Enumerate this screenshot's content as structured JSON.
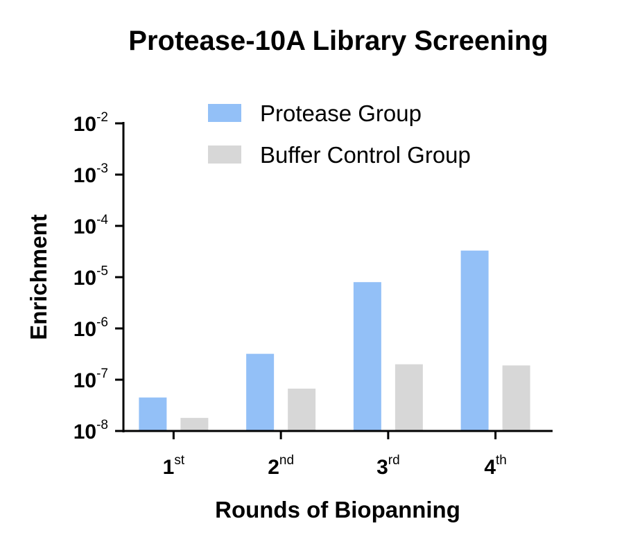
{
  "chart_data": {
    "type": "bar",
    "title": "Protease-10A Library Screening",
    "xlabel": "Rounds of Biopanning",
    "ylabel": "Enrichment",
    "y_scale": "log",
    "ylim": [
      1e-08,
      0.01
    ],
    "y_ticks": [
      {
        "base": "10",
        "exp": "-2",
        "value": 0.01
      },
      {
        "base": "10",
        "exp": "-3",
        "value": 0.001
      },
      {
        "base": "10",
        "exp": "-4",
        "value": 0.0001
      },
      {
        "base": "10",
        "exp": "-5",
        "value": 1e-05
      },
      {
        "base": "10",
        "exp": "-6",
        "value": 1e-06
      },
      {
        "base": "10",
        "exp": "-7",
        "value": 1e-07
      },
      {
        "base": "10",
        "exp": "-8",
        "value": 1e-08
      }
    ],
    "categories": [
      {
        "main": "1",
        "sup": "st"
      },
      {
        "main": "2",
        "sup": "nd"
      },
      {
        "main": "3",
        "sup": "rd"
      },
      {
        "main": "4",
        "sup": "th"
      }
    ],
    "series": [
      {
        "name": "Protease Group",
        "color": "#93c0f7",
        "values": [
          4.5e-08,
          3.2e-07,
          8e-06,
          3.3e-05
        ]
      },
      {
        "name": "Buffer Control Group",
        "color": "#d7d7d7",
        "values": [
          1.8e-08,
          6.7e-08,
          2e-07,
          1.9e-07
        ]
      }
    ],
    "legend": "top-right",
    "grid": false
  }
}
